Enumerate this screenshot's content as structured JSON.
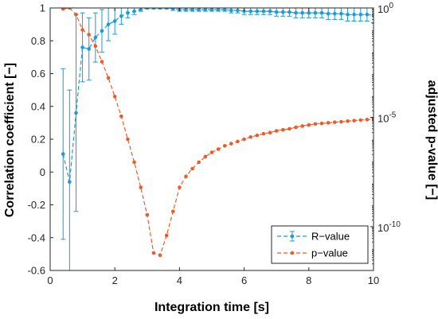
{
  "chart_data": {
    "type": "line",
    "xlabel": "Integration time [s]",
    "ylabel_left": "Correlation coefficient [−]",
    "ylabel_right": "adjusted p-value [−]",
    "xlim": [
      0,
      10
    ],
    "ylim_left": [
      -0.6,
      1
    ],
    "ylim_right": [
      1e-12,
      1
    ],
    "right_axis_scale": "log",
    "x_ticks": [
      0,
      2,
      4,
      6,
      8,
      10
    ],
    "y_ticks_left": [
      1,
      0.8,
      0.6,
      0.4,
      0.2,
      0,
      -0.2,
      -0.4,
      -0.6
    ],
    "y_ticks_right": [
      {
        "value": 1,
        "label": "10",
        "exponent": "0"
      },
      {
        "value": 1e-05,
        "label": "10",
        "exponent": "-5"
      },
      {
        "value": 1e-10,
        "label": "10",
        "exponent": "-10"
      }
    ],
    "grid": false,
    "legend_position": "bottom-right",
    "series": [
      {
        "name": "R−value",
        "axis": "left",
        "color": "#1f9ad6",
        "line_style": "dashed",
        "marker": "dot",
        "error_bars": true,
        "x": [
          0.4,
          0.6,
          0.8,
          1.0,
          1.2,
          1.4,
          1.6,
          1.8,
          2.0,
          2.2,
          2.4,
          2.6,
          2.8,
          3.0,
          3.2,
          3.4,
          3.6,
          3.8,
          4.0,
          4.2,
          4.4,
          4.6,
          4.8,
          5.0,
          5.2,
          5.4,
          5.6,
          5.8,
          6.0,
          6.2,
          6.4,
          6.6,
          6.8,
          7.0,
          7.2,
          7.4,
          7.6,
          7.8,
          8.0,
          8.2,
          8.4,
          8.6,
          8.8,
          9.0,
          9.2,
          9.4,
          9.6,
          9.8,
          10.0
        ],
        "y": [
          0.11,
          -0.06,
          0.36,
          0.76,
          0.75,
          0.82,
          0.86,
          0.9,
          0.92,
          0.95,
          0.97,
          0.98,
          0.99,
          1.0,
          1.0,
          1.0,
          1.0,
          0.995,
          0.99,
          0.99,
          0.99,
          0.99,
          0.99,
          0.99,
          0.99,
          0.99,
          0.985,
          0.985,
          0.98,
          0.98,
          0.98,
          0.98,
          0.98,
          0.975,
          0.975,
          0.975,
          0.97,
          0.97,
          0.97,
          0.97,
          0.97,
          0.965,
          0.965,
          0.965,
          0.96,
          0.96,
          0.96,
          0.96,
          0.955
        ],
        "err": [
          0.52,
          0.56,
          0.6,
          0.21,
          0.19,
          0.15,
          0.13,
          0.1,
          0.08,
          0.05,
          0.03,
          0.02,
          0.01,
          0.005,
          0.005,
          0.005,
          0.005,
          0.01,
          0.01,
          0.01,
          0.01,
          0.01,
          0.01,
          0.01,
          0.01,
          0.01,
          0.015,
          0.015,
          0.02,
          0.02,
          0.02,
          0.02,
          0.02,
          0.025,
          0.025,
          0.025,
          0.03,
          0.03,
          0.03,
          0.03,
          0.03,
          0.035,
          0.035,
          0.035,
          0.04,
          0.04,
          0.04,
          0.04,
          0.045
        ]
      },
      {
        "name": "p−value",
        "axis": "right",
        "color": "#f05a28",
        "line_style": "dashed",
        "marker": "dot",
        "error_bars": false,
        "x": [
          0.4,
          0.6,
          0.8,
          1.0,
          1.2,
          1.4,
          1.6,
          1.8,
          2.0,
          2.2,
          2.4,
          2.6,
          2.8,
          3.0,
          3.2,
          3.4,
          3.6,
          3.8,
          4.0,
          4.2,
          4.4,
          4.6,
          4.8,
          5.0,
          5.2,
          5.4,
          5.6,
          5.8,
          6.0,
          6.2,
          6.4,
          6.6,
          6.8,
          7.0,
          7.2,
          7.4,
          7.6,
          7.8,
          8.0,
          8.2,
          8.4,
          8.6,
          8.8,
          9.0,
          9.2,
          9.4,
          9.6,
          9.8,
          10.0
        ],
        "y": [
          0.9,
          1.0,
          0.5,
          0.1,
          0.06,
          0.018,
          0.0035,
          0.00063,
          8.9e-05,
          1.12e-05,
          1e-06,
          8.9e-08,
          6.3e-09,
          3.5e-10,
          6.3e-12,
          5e-12,
          4e-11,
          5e-10,
          6.3e-09,
          2e-08,
          4.5e-08,
          8.9e-08,
          1.6e-07,
          2.5e-07,
          3.5e-07,
          5e-07,
          6.3e-07,
          7.9e-07,
          1e-06,
          1.26e-06,
          1.5e-06,
          1.78e-06,
          2e-06,
          2.4e-06,
          2.7e-06,
          3e-06,
          3.5e-06,
          4e-06,
          4.5e-06,
          5e-06,
          5.3e-06,
          5.6e-06,
          6e-06,
          6.3e-06,
          6.7e-06,
          7.1e-06,
          7.5e-06,
          7.9e-06,
          8.4e-06
        ]
      }
    ]
  }
}
